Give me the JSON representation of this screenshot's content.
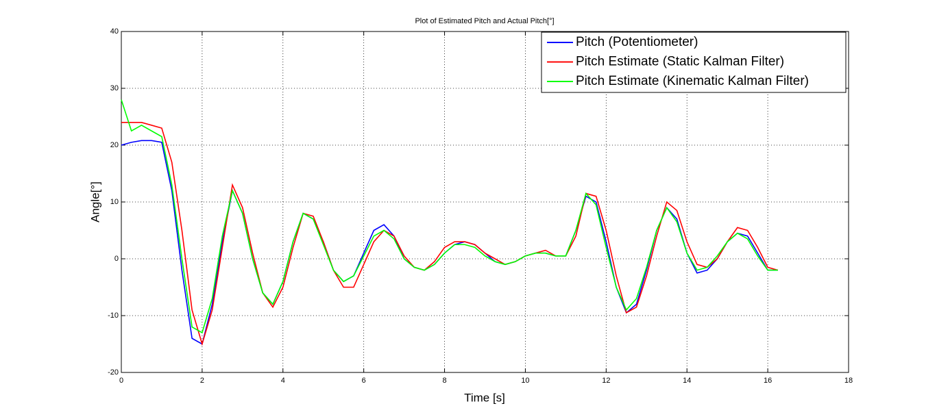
{
  "chart_data": {
    "type": "line",
    "title": "Plot of Estimated Pitch and Actual Pitch[°]",
    "xlabel": "Time [s]",
    "ylabel": "Angle[°]",
    "xlim": [
      0,
      18
    ],
    "xticks": [
      0,
      2,
      4,
      6,
      8,
      10,
      12,
      14,
      16,
      18
    ],
    "ylim": [
      -20,
      40
    ],
    "yticks": [
      -20,
      -10,
      0,
      10,
      20,
      30,
      40
    ],
    "grid": true,
    "legend": "northeast",
    "x": [
      0,
      0.25,
      0.5,
      0.75,
      1,
      1.25,
      1.5,
      1.75,
      2,
      2.25,
      2.5,
      2.75,
      3,
      3.25,
      3.5,
      3.75,
      4,
      4.25,
      4.5,
      4.75,
      5,
      5.25,
      5.5,
      5.75,
      6,
      6.25,
      6.5,
      6.75,
      7,
      7.25,
      7.5,
      7.75,
      8,
      8.25,
      8.5,
      8.75,
      9,
      9.25,
      9.5,
      9.75,
      10,
      10.25,
      10.5,
      10.75,
      11,
      11.25,
      11.5,
      11.75,
      12,
      12.25,
      12.5,
      12.75,
      13,
      13.25,
      13.5,
      13.75,
      14,
      14.25,
      14.5,
      14.75,
      15,
      15.25,
      15.5,
      15.75,
      16,
      16.25
    ],
    "series": [
      {
        "name": "Pitch (Potentiometer)",
        "color": "#0000ff",
        "values": [
          20,
          20.5,
          20.8,
          20.8,
          20.5,
          12,
          -2,
          -14,
          -15,
          -8,
          3,
          12,
          8,
          0,
          -6,
          -8,
          -4,
          3,
          8,
          7,
          3,
          -2,
          -4,
          -3,
          1,
          5,
          6,
          4,
          0,
          -1.5,
          -2,
          -1,
          1,
          2.5,
          3,
          2.5,
          1,
          -0.5,
          -1,
          -0.5,
          0.5,
          1,
          1,
          0.5,
          0.5,
          5,
          11,
          10,
          3,
          -5,
          -9.5,
          -8,
          -2,
          5,
          9,
          7,
          1,
          -2.5,
          -2,
          0,
          3,
          4.5,
          4,
          1,
          -2,
          -2
        ]
      },
      {
        "name": "Pitch Estimate (Static Kalman Filter)",
        "color": "#ff0000",
        "values": [
          24,
          24,
          24,
          23.5,
          23,
          17,
          5,
          -9,
          -15,
          -9,
          2,
          13,
          9,
          1,
          -6,
          -8.5,
          -5,
          2,
          8,
          7.5,
          3,
          -2,
          -5,
          -5,
          -1,
          3,
          5,
          4,
          0.5,
          -1.5,
          -2,
          -0.5,
          2,
          3,
          3,
          2.5,
          1,
          0,
          -1,
          -0.5,
          0.5,
          1,
          1.5,
          0.5,
          0.5,
          4,
          11.5,
          11,
          5,
          -3,
          -9.5,
          -8.5,
          -3,
          4,
          10,
          8.5,
          3,
          -1,
          -1.5,
          0,
          3,
          5.5,
          5,
          2,
          -1.5,
          -2
        ]
      },
      {
        "name": "Pitch Estimate (Kinematic Kalman Filter)",
        "color": "#00ff00",
        "values": [
          28,
          22.5,
          23.5,
          22.5,
          21.5,
          13,
          0,
          -12,
          -13,
          -7,
          4,
          12,
          8,
          0,
          -6,
          -8,
          -4,
          3,
          8,
          7,
          2.5,
          -2,
          -4,
          -3,
          0.5,
          4,
          5,
          3.5,
          0,
          -1.5,
          -2,
          -1,
          1,
          2.5,
          2.5,
          2,
          0.5,
          -0.5,
          -1,
          -0.5,
          0.5,
          1,
          1,
          0.5,
          0.5,
          5,
          11.5,
          9.5,
          2,
          -5,
          -9,
          -7,
          -1.5,
          5,
          9,
          6.5,
          1,
          -2,
          -1.5,
          0.5,
          3,
          4.5,
          3.5,
          0.5,
          -2,
          -2
        ]
      }
    ]
  }
}
